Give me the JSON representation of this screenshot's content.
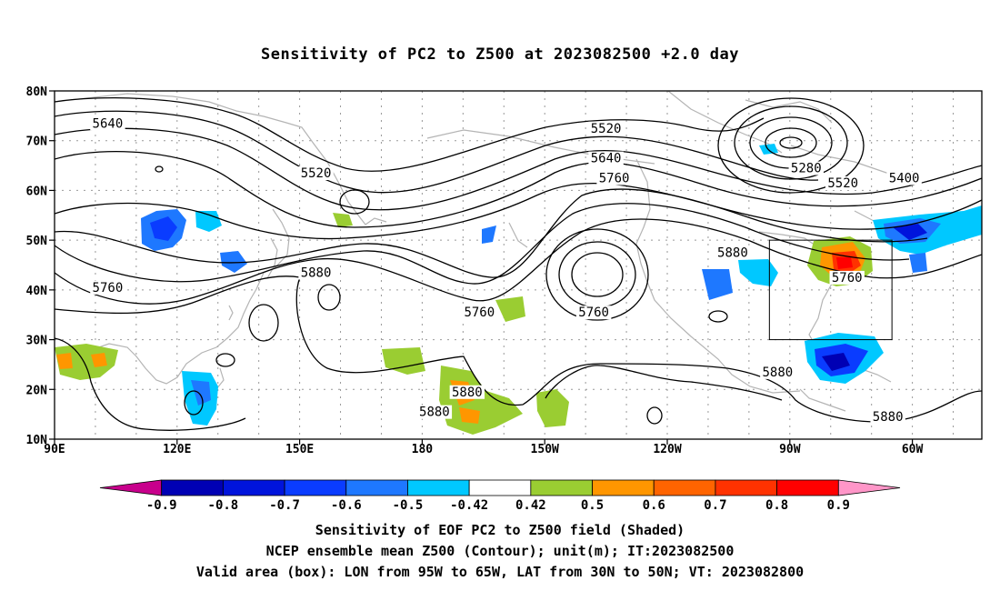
{
  "title": "Sensitivity of PC2 to Z500 at 2023082500 +2.0 day",
  "lat_labels": [
    {
      "text": "80N",
      "lat": 80
    },
    {
      "text": "70N",
      "lat": 70
    },
    {
      "text": "60N",
      "lat": 60
    },
    {
      "text": "50N",
      "lat": 50
    },
    {
      "text": "40N",
      "lat": 40
    },
    {
      "text": "30N",
      "lat": 30
    },
    {
      "text": "20N",
      "lat": 20
    },
    {
      "text": "10N",
      "lat": 10
    }
  ],
  "lon_labels": [
    {
      "text": "90E",
      "lon": 90
    },
    {
      "text": "120E",
      "lon": 120
    },
    {
      "text": "150E",
      "lon": 150
    },
    {
      "text": "180",
      "lon": 180
    },
    {
      "text": "150W",
      "lon": 210
    },
    {
      "text": "120W",
      "lon": 240
    },
    {
      "text": "90W",
      "lon": 270
    },
    {
      "text": "60W",
      "lon": 300
    }
  ],
  "domain": {
    "lon_min": 90,
    "lon_max": 317,
    "lat_min": 10,
    "lat_max": 80
  },
  "contour_labels": [
    {
      "text": "5640",
      "lon": 103,
      "lat": 73
    },
    {
      "text": "5520",
      "lon": 154,
      "lat": 63
    },
    {
      "text": "5880",
      "lon": 154,
      "lat": 43
    },
    {
      "text": "5760",
      "lon": 103,
      "lat": 40
    },
    {
      "text": "5520",
      "lon": 225,
      "lat": 72
    },
    {
      "text": "5640",
      "lon": 225,
      "lat": 66
    },
    {
      "text": "5760",
      "lon": 227,
      "lat": 62
    },
    {
      "text": "5760",
      "lon": 194,
      "lat": 35
    },
    {
      "text": "5760",
      "lon": 222,
      "lat": 35
    },
    {
      "text": "5880",
      "lon": 183,
      "lat": 15
    },
    {
      "text": "5880",
      "lon": 191,
      "lat": 19
    },
    {
      "text": "5880",
      "lon": 256,
      "lat": 47
    },
    {
      "text": "5280",
      "lon": 274,
      "lat": 64
    },
    {
      "text": "5520",
      "lon": 283,
      "lat": 61
    },
    {
      "text": "5400",
      "lon": 298,
      "lat": 62
    },
    {
      "text": "5760",
      "lon": 284,
      "lat": 42
    },
    {
      "text": "5880",
      "lon": 267,
      "lat": 23
    },
    {
      "text": "5880",
      "lon": 294,
      "lat": 14
    }
  ],
  "valid_box": {
    "lon_w": 265,
    "lon_e": 295,
    "lat_s": 30,
    "lat_n": 50
  },
  "colorbar": {
    "colors": [
      "#c8008c",
      "#0000b4",
      "#0014dc",
      "#0a3cff",
      "#1e78ff",
      "#00c8ff",
      "#ffffff",
      "#9acd32",
      "#ff9600",
      "#ff6400",
      "#ff3200",
      "#ff0000",
      "#ff96c8"
    ],
    "ticks": [
      "-0.9",
      "-0.8",
      "-0.7",
      "-0.6",
      "-0.5",
      "-0.42",
      "0.42",
      "0.5",
      "0.6",
      "0.7",
      "0.8",
      "0.9"
    ]
  },
  "footer": {
    "line1": "Sensitivity of EOF PC2 to Z500 field (Shaded)",
    "line2": "NCEP ensemble mean Z500 (Contour); unit(m); IT:2023082500",
    "line3": "Valid area (box): LON from 95W to 65W, LAT from 30N to 50N; VT: 2023082800"
  }
}
